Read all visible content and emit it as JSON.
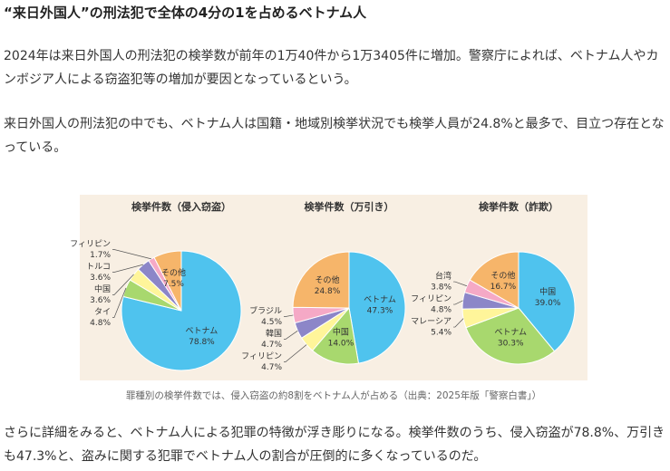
{
  "title": "“来日外国人”の刑法犯で全体の4分の1を占めるベトナム人",
  "paragraphs": [
    "2024年は来日外国人の刑法犯の検挙数が前年の1万40件から1万3405件に増加。警察庁によれば、ベトナム人やカンボジア人による窃盗犯等の増加が要因となっているという。",
    "来日外国人の刑法犯の中でも、ベトナム人は国籍・地域別検挙状況でも検挙人員が24.8%と最多で、目立つ存在となっている。",
    "さらに詳細をみると、ベトナム人による犯罪の特徴が浮き彫りになる。検挙件数のうち、侵入窃盗が78.8%、万引きも47.3%と、盗みに関する犯罪でベトナム人の割合が圧倒的に多くなっているのだ。"
  ],
  "figure": {
    "caption": "罪種別の検挙件数では、侵入窃盗の約8割をベトナム人が占める（出典：2025年版「警察白書」）"
  },
  "chart_data": [
    {
      "type": "pie",
      "title": "検挙件数（侵入窃盗）",
      "categories": [
        "ベトナム",
        "タイ",
        "中国",
        "トルコ",
        "フィリピン",
        "その他"
      ],
      "values": [
        78.8,
        4.8,
        3.6,
        3.6,
        1.7,
        7.5
      ],
      "value_labels": [
        "78.8%",
        "4.8%",
        "3.6%",
        "3.6%",
        "1.7%",
        "7.5%"
      ],
      "colors": [
        "#4fc3ee",
        "#a8d86e",
        "#fff59a",
        "#8c86c8",
        "#f5a9c6",
        "#f6b56a"
      ]
    },
    {
      "type": "pie",
      "title": "検挙件数（万引き）",
      "categories": [
        "ベトナム",
        "中国",
        "フィリピン",
        "韓国",
        "ブラジル",
        "その他"
      ],
      "values": [
        47.3,
        14.0,
        4.7,
        4.7,
        4.5,
        24.8
      ],
      "value_labels": [
        "47.3%",
        "14.0%",
        "4.7%",
        "4.7%",
        "4.5%",
        "24.8%"
      ],
      "colors": [
        "#4fc3ee",
        "#a8d86e",
        "#fff59a",
        "#8c86c8",
        "#f5a9c6",
        "#f6b56a"
      ]
    },
    {
      "type": "pie",
      "title": "検挙件数（詐欺）",
      "categories": [
        "中国",
        "ベトナム",
        "マレーシア",
        "フィリピン",
        "台湾",
        "その他"
      ],
      "values": [
        39.0,
        30.3,
        5.4,
        4.8,
        3.8,
        16.7
      ],
      "value_labels": [
        "39.0%",
        "30.3%",
        "5.4%",
        "4.8%",
        "3.8%",
        "16.7%"
      ],
      "colors": [
        "#4fc3ee",
        "#a8d86e",
        "#fff59a",
        "#8c86c8",
        "#f5a9c6",
        "#f6b56a"
      ]
    }
  ]
}
